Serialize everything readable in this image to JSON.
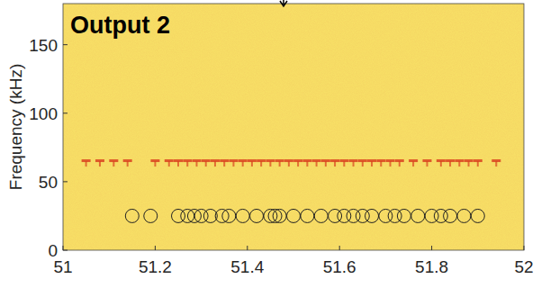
{
  "chart_data": {
    "type": "scatter",
    "title": "Output 2",
    "y_label": "Frequency (kHz)",
    "xlim": [
      51,
      52
    ],
    "ylim": [
      0,
      180
    ],
    "xticks": [
      51,
      51.2,
      51.4,
      51.6,
      51.8,
      52
    ],
    "yticks": [
      0,
      50,
      100,
      150
    ],
    "grid": false,
    "series": [
      {
        "color": "#d9411e",
        "marker": "dash",
        "x": [
          51.05,
          51.08,
          51.11,
          51.14,
          51.2,
          51.23,
          51.25,
          51.27,
          51.29,
          51.31,
          51.33,
          51.35,
          51.37,
          51.39,
          51.41,
          51.43,
          51.45,
          51.47,
          51.49,
          51.51,
          51.53,
          51.55,
          51.57,
          51.59,
          51.61,
          51.63,
          51.65,
          51.67,
          51.69,
          51.71,
          51.73,
          51.76,
          51.79,
          51.82,
          51.84,
          51.86,
          51.88,
          51.9,
          51.94
        ],
        "values": [
          65,
          65,
          65,
          65,
          65,
          65,
          65,
          65,
          65,
          65,
          65,
          65,
          65,
          65,
          65,
          65,
          65,
          65,
          65,
          65,
          65,
          65,
          65,
          65,
          65,
          65,
          65,
          65,
          65,
          65,
          65,
          65,
          65,
          65,
          65,
          65,
          65,
          65,
          65
        ]
      },
      {
        "color": "#222222",
        "marker": "circle",
        "x": [
          51.15,
          51.19,
          51.25,
          51.27,
          51.285,
          51.3,
          51.32,
          51.345,
          51.36,
          51.39,
          51.42,
          51.45,
          51.46,
          51.47,
          51.5,
          51.53,
          51.56,
          51.59,
          51.61,
          51.63,
          51.65,
          51.67,
          51.7,
          51.72,
          51.74,
          51.77,
          51.8,
          51.82,
          51.84,
          51.87,
          51.9
        ],
        "values": [
          25,
          25,
          25,
          25,
          25,
          25,
          25,
          25,
          25,
          25,
          25,
          25,
          25,
          25,
          25,
          25,
          25,
          25,
          25,
          25,
          25,
          25,
          25,
          25,
          25,
          25,
          25,
          25,
          25,
          25,
          25
        ]
      }
    ]
  }
}
